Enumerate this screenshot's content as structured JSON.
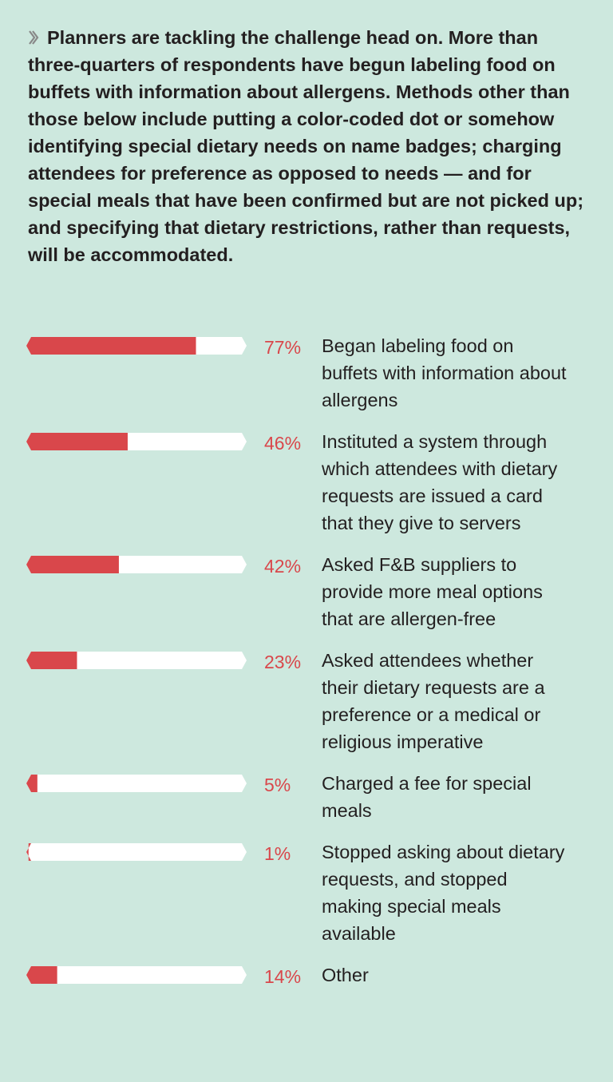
{
  "chart_data": {
    "type": "bar",
    "title": "Planners are tackling the challenge head on. More than three-quarters of respondents have begun labeling food on buffets with information about allergens. Methods other than those below include putting a color-coded dot or somehow identifying special dietary needs on name badges; charging attendees for preference as opposed to needs — and for special meals that have been confirmed but are not picked up; and specifying that dietary restrictions, rather than requests, will be accommodated.",
    "categories": [
      "Began labeling food on buffets with information about allergens",
      "Instituted a system through which attendees with dietary requests are issued a card that they give to servers",
      "Asked F&B suppliers to provide more meal options that are allergen-free",
      "Asked attendees whether their dietary requests are a preference or a medical or religious imperative",
      "Charged a fee for special meals",
      "Stopped asking about dietary requests, and stopped making special meals available",
      "Other"
    ],
    "values": [
      77,
      46,
      42,
      23,
      5,
      1,
      14
    ],
    "value_labels": [
      "77%",
      "46%",
      "42%",
      "23%",
      "5%",
      "1%",
      "14%"
    ],
    "xlim": [
      0,
      100
    ],
    "color": "#d9474b"
  }
}
